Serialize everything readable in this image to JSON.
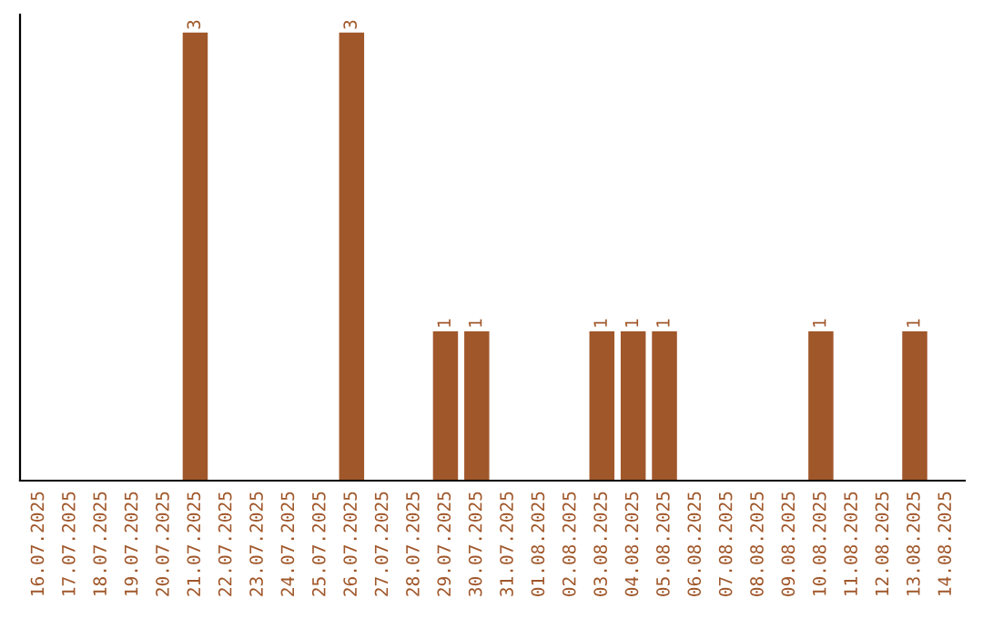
{
  "chart_data": {
    "type": "bar",
    "categories": [
      "16.07.2025",
      "17.07.2025",
      "18.07.2025",
      "19.07.2025",
      "20.07.2025",
      "21.07.2025",
      "22.07.2025",
      "23.07.2025",
      "24.07.2025",
      "25.07.2025",
      "26.07.2025",
      "27.07.2025",
      "28.07.2025",
      "29.07.2025",
      "30.07.2025",
      "31.07.2025",
      "01.08.2025",
      "02.08.2025",
      "03.08.2025",
      "04.08.2025",
      "05.08.2025",
      "06.08.2025",
      "07.08.2025",
      "08.08.2025",
      "09.08.2025",
      "10.08.2025",
      "11.08.2025",
      "12.08.2025",
      "13.08.2025",
      "14.08.2025"
    ],
    "values": [
      0,
      0,
      0,
      0,
      0,
      3,
      0,
      0,
      0,
      0,
      3,
      0,
      0,
      1,
      1,
      0,
      0,
      0,
      1,
      1,
      1,
      0,
      0,
      0,
      0,
      1,
      0,
      0,
      1,
      0
    ],
    "value_labels": [
      null,
      null,
      null,
      null,
      null,
      "3",
      null,
      null,
      null,
      null,
      "3",
      null,
      null,
      "1",
      "1",
      null,
      null,
      null,
      "1",
      "1",
      "1",
      null,
      null,
      null,
      null,
      "1",
      null,
      null,
      "1",
      null
    ],
    "color": "#a0572a",
    "grid": false,
    "legend": false
  }
}
